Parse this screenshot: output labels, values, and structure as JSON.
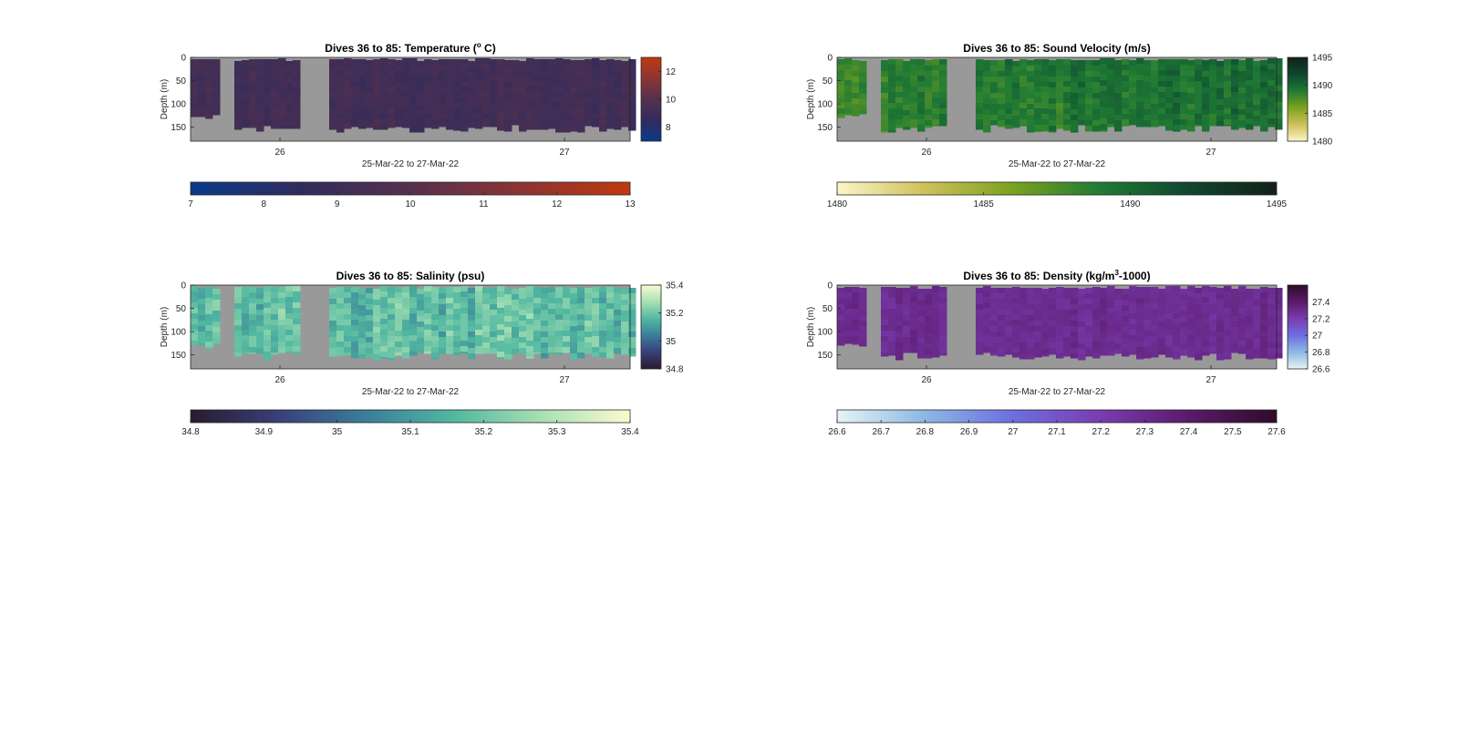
{
  "figure": {
    "background": "#ffffff"
  },
  "chart_data": [
    {
      "type": "heatmap",
      "variable": "temperature",
      "title": "Dives 36 to 85: Temperature (",
      "title_sup": "o",
      "title_suffix": " C)",
      "xlabel": "25-Mar-22 to 27-Mar-22",
      "ylabel": "Depth (m)",
      "x_ticks": [
        "26",
        "27"
      ],
      "y_ticks": [
        "0",
        "50",
        "100",
        "150"
      ],
      "ylim": [
        0,
        180
      ],
      "colorbar_ticks": [
        "8",
        "10",
        "12"
      ],
      "colorbar_limits": [
        7,
        13
      ],
      "h_colorbar_ticks": [
        "7",
        "8",
        "9",
        "10",
        "11",
        "12",
        "13"
      ],
      "colormap": [
        "#0a3a8a",
        "#302c5c",
        "#56304e",
        "#8a3434",
        "#c0390f"
      ],
      "value_range": [
        8.6,
        9.8
      ],
      "background_color": "#999999"
    },
    {
      "type": "heatmap",
      "variable": "sound_velocity",
      "title": "Dives 36 to 85: Sound Velocity (m/s)",
      "title_sup": "",
      "title_suffix": "",
      "xlabel": "25-Mar-22 to 27-Mar-22",
      "ylabel": "Depth (m)",
      "x_ticks": [
        "26",
        "27"
      ],
      "y_ticks": [
        "0",
        "50",
        "100",
        "150"
      ],
      "ylim": [
        0,
        180
      ],
      "colorbar_ticks": [
        "1480",
        "1485",
        "1490",
        "1495"
      ],
      "colorbar_limits": [
        1480,
        1495
      ],
      "h_colorbar_ticks": [
        "1480",
        "1485",
        "1490",
        "1495"
      ],
      "colormap": [
        "#fbf6c8",
        "#cfc05a",
        "#7aa21e",
        "#1f7a34",
        "#0f4630",
        "#132018"
      ],
      "value_range": [
        1486.5,
        1490.5
      ],
      "background_color": "#999999"
    },
    {
      "type": "heatmap",
      "variable": "salinity",
      "title": "Dives 36 to 85: Salinity (psu)",
      "title_sup": "",
      "title_suffix": "",
      "xlabel": "25-Mar-22 to 27-Mar-22",
      "ylabel": "Depth (m)",
      "x_ticks": [
        "26",
        "27"
      ],
      "y_ticks": [
        "0",
        "50",
        "100",
        "150"
      ],
      "ylim": [
        0,
        180
      ],
      "colorbar_ticks": [
        "34.8",
        "35",
        "35.2",
        "35.4"
      ],
      "colorbar_limits": [
        34.8,
        35.4
      ],
      "h_colorbar_ticks": [
        "34.8",
        "34.9",
        "35",
        "35.1",
        "35.2",
        "35.3",
        "35.4"
      ],
      "colormap": [
        "#281c2e",
        "#3a3f7a",
        "#3a7e9a",
        "#52b8a0",
        "#a8e0b4",
        "#fbfad0"
      ],
      "value_range": [
        35.05,
        35.3
      ],
      "background_color": "#999999"
    },
    {
      "type": "heatmap",
      "variable": "density",
      "title": "Dives 36 to 85: Density (kg/m",
      "title_sup": "3",
      "title_suffix": "-1000)",
      "xlabel": "25-Mar-22 to 27-Mar-22",
      "ylabel": "Depth (m)",
      "x_ticks": [
        "26",
        "27"
      ],
      "y_ticks": [
        "0",
        "50",
        "100",
        "150"
      ],
      "ylim": [
        0,
        180
      ],
      "colorbar_ticks": [
        "26.6",
        "26.8",
        "27",
        "27.2",
        "27.4"
      ],
      "colorbar_limits": [
        26.6,
        27.6
      ],
      "h_colorbar_ticks": [
        "26.6",
        "26.7",
        "26.8",
        "26.9",
        "27",
        "27.1",
        "27.2",
        "27.3",
        "27.4",
        "27.5",
        "27.6"
      ],
      "colormap": [
        "#e6f4f4",
        "#8cb8e4",
        "#6e6ee0",
        "#7a3cb0",
        "#5a1a6a",
        "#2e0c26"
      ],
      "value_range": [
        27.22,
        27.36
      ],
      "background_color": "#999999"
    }
  ]
}
